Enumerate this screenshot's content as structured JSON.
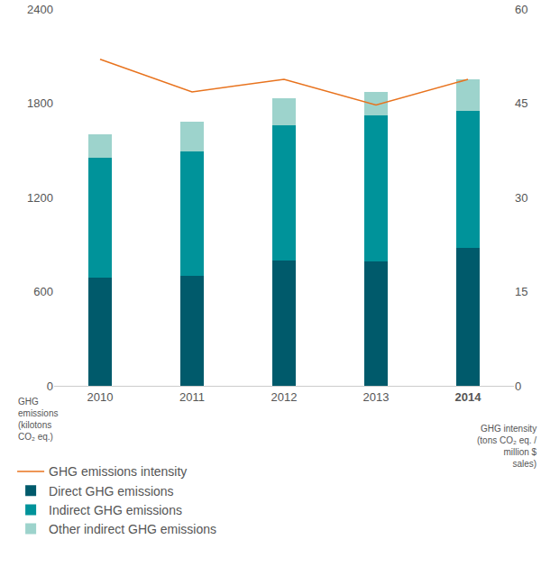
{
  "chart_data": {
    "type": "bar",
    "stacked": true,
    "categories": [
      "2010",
      "2011",
      "2012",
      "2013",
      "2014"
    ],
    "series": [
      {
        "name": "Direct GHG emissions",
        "color": "#005a6b",
        "values": [
          690,
          700,
          800,
          795,
          880
        ]
      },
      {
        "name": "Indirect GHG emissions",
        "color": "#00939a",
        "values": [
          760,
          790,
          860,
          925,
          870
        ]
      },
      {
        "name": "Other indirect GHG emissions",
        "color": "#9dd3cc",
        "values": [
          150,
          190,
          170,
          150,
          200
        ]
      },
      {
        "name": "GHG emissions intensity",
        "type": "line",
        "axis": "y2",
        "color": "#e8731e",
        "values": [
          52,
          46.8,
          48.8,
          44.7,
          48.8
        ]
      }
    ],
    "y_label": "GHG emissions (kilotons CO₂ eq.)",
    "y2_label": "GHG intensity (tons CO₂ eq. / million $ sales)",
    "ylim": [
      0,
      2400
    ],
    "yticks": [
      0,
      600,
      1200,
      1800,
      2400
    ],
    "y2lim": [
      0,
      60
    ],
    "y2ticks": [
      0,
      15,
      30,
      45,
      60
    ],
    "grid": false,
    "legend": "bottom"
  }
}
